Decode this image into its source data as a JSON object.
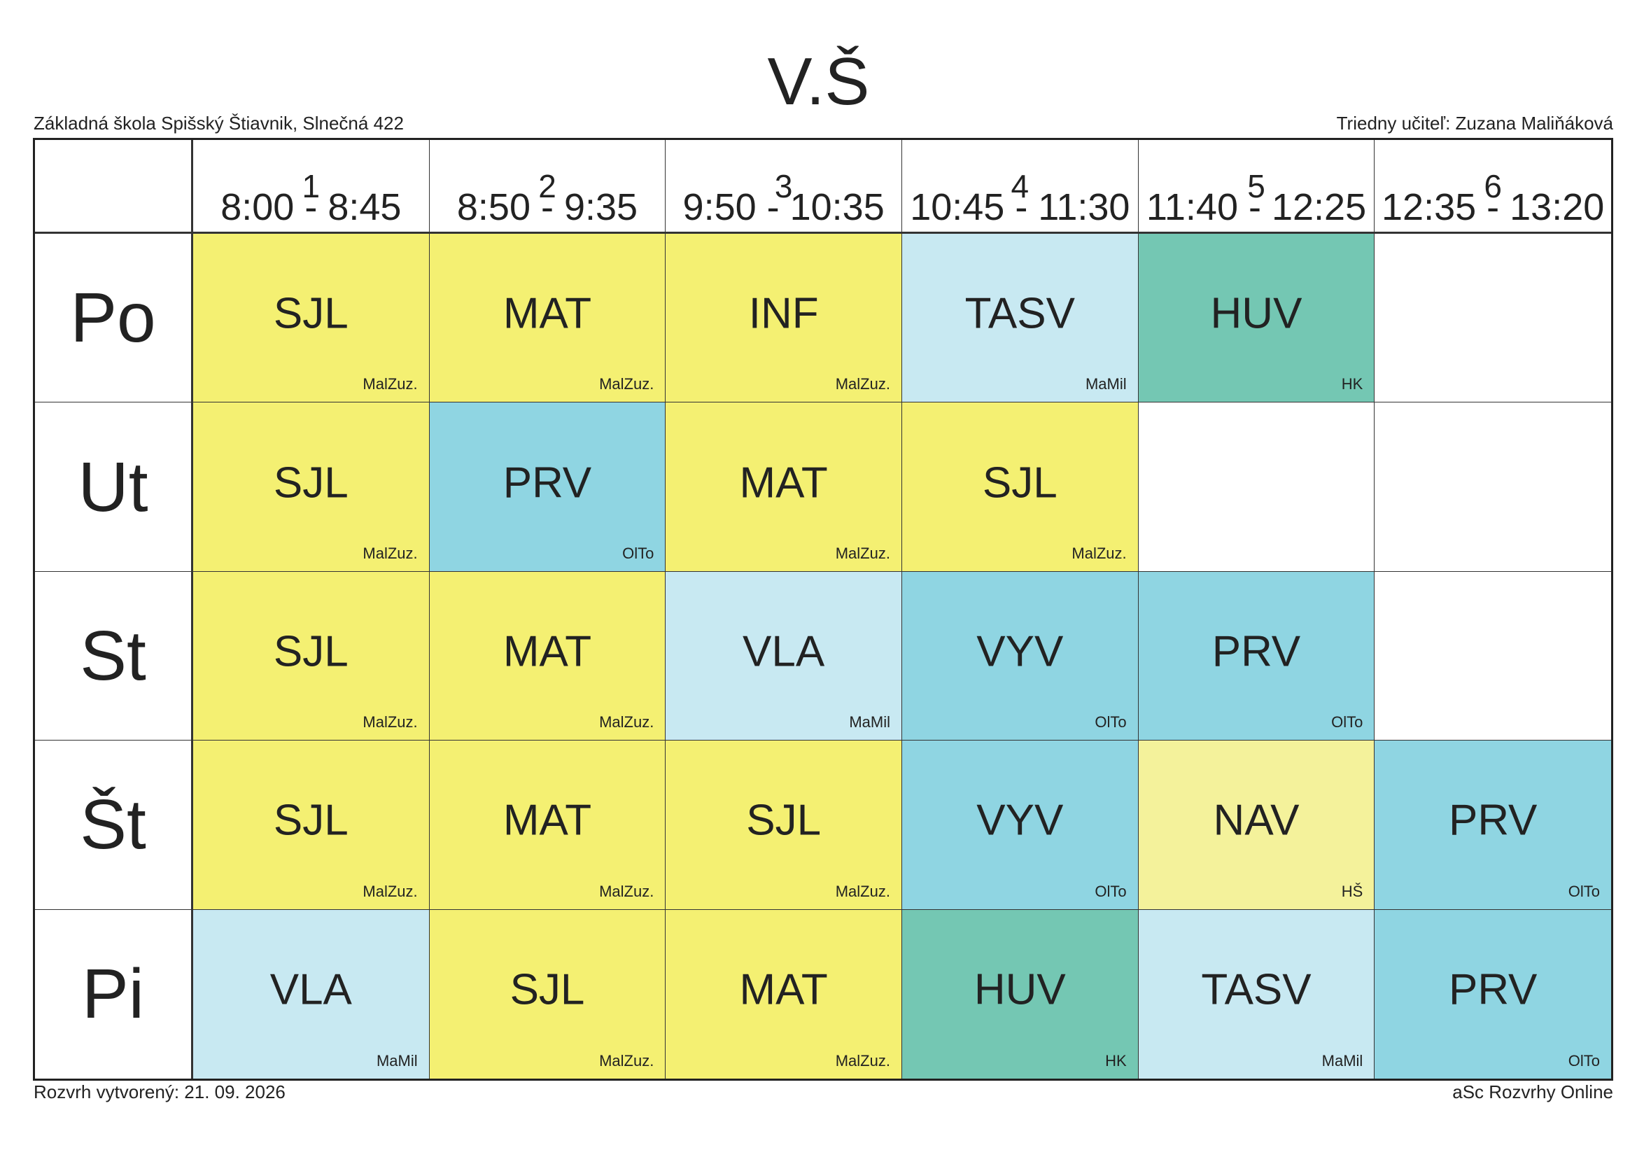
{
  "title": "V.Š",
  "school": "Základná škola Spišský Štiavnik, Slnečná 422",
  "class_teacher": "Triedny učiteľ: Zuzana Maliňáková",
  "created": "Rozvrh vytvorený: 21. 09. 2026",
  "generator": "aSc Rozvrhy Online",
  "colors": {
    "yellow": "#f4f072",
    "lightblue": "#c8e9f2",
    "teal": "#74c7b3",
    "blue": "#8fd5e2",
    "paleyellow": "#f4f29b"
  },
  "periods": [
    {
      "num": "1",
      "time": "8:00 - 8:45"
    },
    {
      "num": "2",
      "time": "8:50 - 9:35"
    },
    {
      "num": "3",
      "time": "9:50 - 10:35"
    },
    {
      "num": "4",
      "time": "10:45 - 11:30"
    },
    {
      "num": "5",
      "time": "11:40 - 12:25"
    },
    {
      "num": "6",
      "time": "12:35 - 13:20"
    }
  ],
  "days": [
    {
      "label": "Po",
      "lessons": [
        {
          "subject": "SJL",
          "teacher": "MalZuz.",
          "color": "yellow"
        },
        {
          "subject": "MAT",
          "teacher": "MalZuz.",
          "color": "yellow"
        },
        {
          "subject": "INF",
          "teacher": "MalZuz.",
          "color": "yellow"
        },
        {
          "subject": "TASV",
          "teacher": "MaMil",
          "color": "lightblue"
        },
        {
          "subject": "HUV",
          "teacher": "HK",
          "color": "teal"
        },
        {
          "subject": "",
          "teacher": "",
          "color": "empty"
        }
      ]
    },
    {
      "label": "Ut",
      "lessons": [
        {
          "subject": "SJL",
          "teacher": "MalZuz.",
          "color": "yellow"
        },
        {
          "subject": "PRV",
          "teacher": "OlTo",
          "color": "blue"
        },
        {
          "subject": "MAT",
          "teacher": "MalZuz.",
          "color": "yellow"
        },
        {
          "subject": "SJL",
          "teacher": "MalZuz.",
          "color": "yellow"
        },
        {
          "subject": "",
          "teacher": "",
          "color": "empty"
        },
        {
          "subject": "",
          "teacher": "",
          "color": "empty"
        }
      ]
    },
    {
      "label": "St",
      "lessons": [
        {
          "subject": "SJL",
          "teacher": "MalZuz.",
          "color": "yellow"
        },
        {
          "subject": "MAT",
          "teacher": "MalZuz.",
          "color": "yellow"
        },
        {
          "subject": "VLA",
          "teacher": "MaMil",
          "color": "lightblue"
        },
        {
          "subject": "VYV",
          "teacher": "OlTo",
          "color": "blue"
        },
        {
          "subject": "PRV",
          "teacher": "OlTo",
          "color": "blue"
        },
        {
          "subject": "",
          "teacher": "",
          "color": "empty"
        }
      ]
    },
    {
      "label": "Št",
      "lessons": [
        {
          "subject": "SJL",
          "teacher": "MalZuz.",
          "color": "yellow"
        },
        {
          "subject": "MAT",
          "teacher": "MalZuz.",
          "color": "yellow"
        },
        {
          "subject": "SJL",
          "teacher": "MalZuz.",
          "color": "yellow"
        },
        {
          "subject": "VYV",
          "teacher": "OlTo",
          "color": "blue"
        },
        {
          "subject": "NAV",
          "teacher": "HŠ",
          "color": "paleyellow"
        },
        {
          "subject": "PRV",
          "teacher": "OlTo",
          "color": "blue"
        }
      ]
    },
    {
      "label": "Pi",
      "lessons": [
        {
          "subject": "VLA",
          "teacher": "MaMil",
          "color": "lightblue"
        },
        {
          "subject": "SJL",
          "teacher": "MalZuz.",
          "color": "yellow"
        },
        {
          "subject": "MAT",
          "teacher": "MalZuz.",
          "color": "yellow"
        },
        {
          "subject": "HUV",
          "teacher": "HK",
          "color": "teal"
        },
        {
          "subject": "TASV",
          "teacher": "MaMil",
          "color": "lightblue"
        },
        {
          "subject": "PRV",
          "teacher": "OlTo",
          "color": "blue"
        }
      ]
    }
  ]
}
